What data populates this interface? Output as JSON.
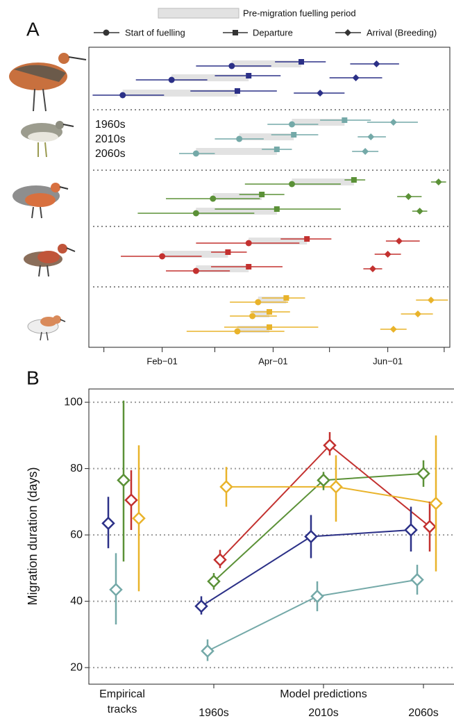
{
  "chart_data": [
    {
      "type": "timeline",
      "panel_label": "A",
      "legend": {
        "fuelling": "Pre-migration fuelling period",
        "start": "Start of fuelling",
        "departure": "Departure",
        "arrival": "Arrival (Breeding)"
      },
      "row_labels": [
        "1960s",
        "2010s",
        "2060s"
      ],
      "xlim": [
        -7,
        185
      ],
      "xticks": [
        {
          "value": 32,
          "label": "Feb−01"
        },
        {
          "value": 91,
          "label": "Apr−01"
        },
        {
          "value": 152,
          "label": "Jun−01"
        }
      ],
      "xminor_ticks": [
        1,
        60,
        121,
        182
      ],
      "fuelling_color": "#e2e2e2",
      "series": [
        {
          "color": "#2b3087",
          "start": [
            69,
            37,
            11
          ],
          "start_lo": [
            50,
            18,
            -5
          ],
          "start_hi": [
            90,
            56,
            33
          ],
          "departure": [
            106,
            78,
            72
          ],
          "departure_lo": [
            92,
            60,
            47
          ],
          "departure_hi": [
            119,
            95,
            93
          ],
          "arrival": [
            146,
            135,
            116
          ],
          "arrival_lo": [
            132,
            121,
            102
          ],
          "arrival_hi": [
            158,
            149,
            129
          ]
        },
        {
          "color": "#74a9a8",
          "start": [
            101,
            73,
            50
          ],
          "start_lo": [
            88,
            60,
            41
          ],
          "start_hi": [
            115,
            86,
            60
          ],
          "departure": [
            129,
            102,
            93
          ],
          "departure_lo": [
            116,
            90,
            85
          ],
          "departure_hi": [
            143,
            115,
            101
          ],
          "arrival": [
            155,
            143,
            140
          ],
          "arrival_lo": [
            141,
            136,
            133
          ],
          "arrival_hi": [
            168,
            151,
            147
          ]
        },
        {
          "color": "#5b9137",
          "start": [
            101,
            59,
            50
          ],
          "start_lo": [
            76,
            34,
            19
          ],
          "start_hi": [
            127,
            84,
            81
          ],
          "departure": [
            134,
            85,
            93
          ],
          "departure_lo": [
            129,
            73,
            60
          ],
          "departure_hi": [
            140,
            97,
            127
          ],
          "arrival": [
            179,
            163,
            169
          ],
          "arrival_lo": [
            175,
            157,
            165
          ],
          "arrival_hi": [
            183,
            170,
            173
          ]
        },
        {
          "color": "#c3312f",
          "start": [
            78,
            32,
            50
          ],
          "start_lo": [
            50,
            10,
            34
          ],
          "start_hi": [
            105,
            53,
            68
          ],
          "departure": [
            109,
            67,
            78
          ],
          "departure_lo": [
            95,
            58,
            58
          ],
          "departure_hi": [
            122,
            77,
            96
          ],
          "arrival": [
            158,
            152,
            144
          ],
          "arrival_lo": [
            151,
            145,
            139
          ],
          "arrival_hi": [
            169,
            159,
            149
          ]
        },
        {
          "color": "#e9b32a",
          "start": [
            83,
            80,
            72
          ],
          "start_lo": [
            68,
            68,
            45
          ],
          "start_hi": [
            99,
            93,
            97
          ],
          "departure": [
            98,
            89,
            89
          ],
          "departure_lo": [
            85,
            79,
            65
          ],
          "departure_hi": [
            108,
            100,
            115
          ],
          "arrival": [
            175,
            168,
            155
          ],
          "arrival_lo": [
            167,
            159,
            148
          ],
          "arrival_hi": [
            184,
            176,
            162
          ]
        }
      ]
    },
    {
      "type": "line",
      "panel_label": "B",
      "ylabel": "Migration duration (days)",
      "ylim": [
        15,
        104
      ],
      "yticks": [
        20,
        40,
        60,
        80,
        100
      ],
      "grid": true,
      "empirical_label": [
        "Empirical",
        "tracks"
      ],
      "group_label": "Model predictions",
      "categories": [
        "1960s",
        "2010s",
        "2060s"
      ],
      "series": [
        {
          "color": "#2b3087",
          "empirical": 63.5,
          "empirical_lo": 56,
          "empirical_hi": 71.5,
          "values": [
            38.5,
            59.5,
            61.5
          ],
          "lo": [
            36,
            53,
            55
          ],
          "hi": [
            41.5,
            66,
            68.5
          ]
        },
        {
          "color": "#74a9a8",
          "empirical": 43.5,
          "empirical_lo": 33,
          "empirical_hi": 54.5,
          "values": [
            25,
            41.5,
            46.5
          ],
          "lo": [
            22,
            37,
            42
          ],
          "hi": [
            28.5,
            46,
            51
          ]
        },
        {
          "color": "#5b9137",
          "empirical": 76.5,
          "empirical_lo": 52,
          "empirical_hi": 100.5,
          "values": [
            46,
            76.5,
            78.5
          ],
          "lo": [
            43.5,
            73.5,
            74.5
          ],
          "hi": [
            48.5,
            79,
            82.5
          ]
        },
        {
          "color": "#c3312f",
          "empirical": 70.5,
          "empirical_lo": 61.5,
          "empirical_hi": 79.5,
          "values": [
            52.5,
            87,
            62.5
          ],
          "lo": [
            50,
            84,
            55
          ],
          "hi": [
            55.5,
            91,
            70
          ]
        },
        {
          "color": "#e9b32a",
          "empirical": 65,
          "empirical_lo": 43,
          "empirical_hi": 87,
          "values": [
            74.5,
            74.5,
            69.5
          ],
          "lo": [
            68.5,
            64,
            49
          ],
          "hi": [
            80.5,
            84,
            90
          ]
        }
      ]
    }
  ]
}
